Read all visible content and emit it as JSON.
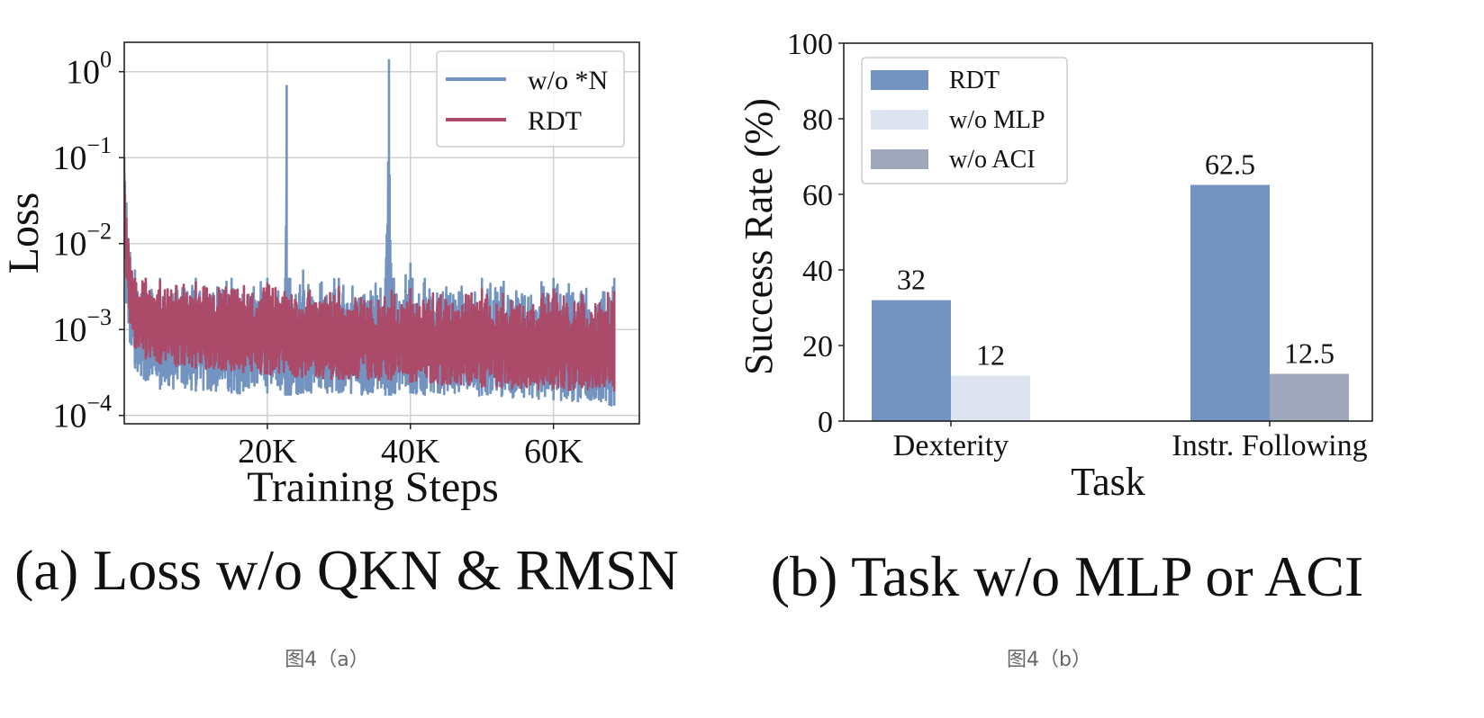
{
  "chart_data": [
    {
      "type": "line",
      "panel_caption": "(a) Loss w/o QKN & RMSN",
      "xlabel": "Training Steps",
      "ylabel": "Loss",
      "x_ticks": [
        20000,
        40000,
        60000
      ],
      "x_tick_labels": [
        "20K",
        "40K",
        "60K"
      ],
      "xlim": [
        0,
        72000
      ],
      "y_scale": "log",
      "ylim": [
        8e-05,
        2.2
      ],
      "y_ticks": [
        0.0001,
        0.001,
        0.01,
        0.1,
        1
      ],
      "y_tick_labels": [
        {
          "base": "10",
          "exp": "−4"
        },
        {
          "base": "10",
          "exp": "−3"
        },
        {
          "base": "10",
          "exp": "−2"
        },
        {
          "base": "10",
          "exp": "−1"
        },
        {
          "base": "10",
          "exp": "0"
        }
      ],
      "grid": true,
      "legend_position": "top-right",
      "series": [
        {
          "name": "w/o *N",
          "color": "#7393c0",
          "x": [
            0,
            300,
            800,
            1500,
            3000,
            5000,
            10000,
            15000,
            20000,
            22500,
            22700,
            22900,
            23200,
            25000,
            30000,
            36500,
            37000,
            37300,
            37700,
            40000,
            40300,
            42000,
            50000,
            60000,
            68500
          ],
          "y_upper": [
            0.1,
            0.03,
            0.008,
            0.005,
            0.004,
            0.004,
            0.004,
            0.004,
            0.004,
            0.004,
            0.7,
            0.004,
            0.004,
            0.005,
            0.004,
            0.004,
            1.4,
            0.006,
            0.004,
            0.006,
            0.004,
            0.004,
            0.004,
            0.004,
            0.004
          ],
          "y_lower": [
            0.01,
            0.002,
            0.0007,
            0.00035,
            0.00025,
            0.0002,
            0.00019,
            0.00018,
            0.00018,
            0.00017,
            0.00017,
            0.00017,
            0.00017,
            0.00018,
            0.00018,
            0.00017,
            0.00017,
            0.00017,
            0.00018,
            0.00018,
            0.00018,
            0.00017,
            0.00017,
            0.00015,
            0.00013
          ]
        },
        {
          "name": "RDT",
          "color": "#ac4b69",
          "x": [
            0,
            300,
            800,
            1500,
            3000,
            5000,
            10000,
            20000,
            30000,
            40000,
            50000,
            60000,
            68500
          ],
          "y_upper": [
            0.065,
            0.02,
            0.007,
            0.004,
            0.004,
            0.0038,
            0.0036,
            0.0035,
            0.0032,
            0.003,
            0.003,
            0.003,
            0.0028
          ],
          "y_lower": [
            0.02,
            0.004,
            0.0012,
            0.0006,
            0.00045,
            0.0004,
            0.00035,
            0.0003,
            0.00026,
            0.00024,
            0.00021,
            0.0002,
            0.00019
          ]
        }
      ]
    },
    {
      "type": "bar",
      "panel_caption": "(b) Task w/o MLP or ACI",
      "xlabel": "Task",
      "ylabel": "Success Rate (%)",
      "categories": [
        "Dexterity",
        "Instr. Following"
      ],
      "ylim": [
        0,
        100
      ],
      "y_ticks": [
        0,
        20,
        40,
        60,
        80,
        100
      ],
      "grid": false,
      "legend_position": "top-left",
      "series": [
        {
          "name": "RDT",
          "color": "#7393c0",
          "values": [
            32,
            62.5
          ],
          "labels": [
            "32",
            "62.5"
          ]
        },
        {
          "name": "w/o MLP",
          "color": "#dde4f0",
          "values": [
            12,
            null
          ],
          "labels": [
            "12",
            ""
          ]
        },
        {
          "name": "w/o ACI",
          "color": "#9ea8ba",
          "values": [
            null,
            12.5
          ],
          "labels": [
            "",
            "12.5"
          ]
        }
      ]
    }
  ],
  "captions": {
    "left": "图4（a）",
    "right": "图4（b）"
  }
}
